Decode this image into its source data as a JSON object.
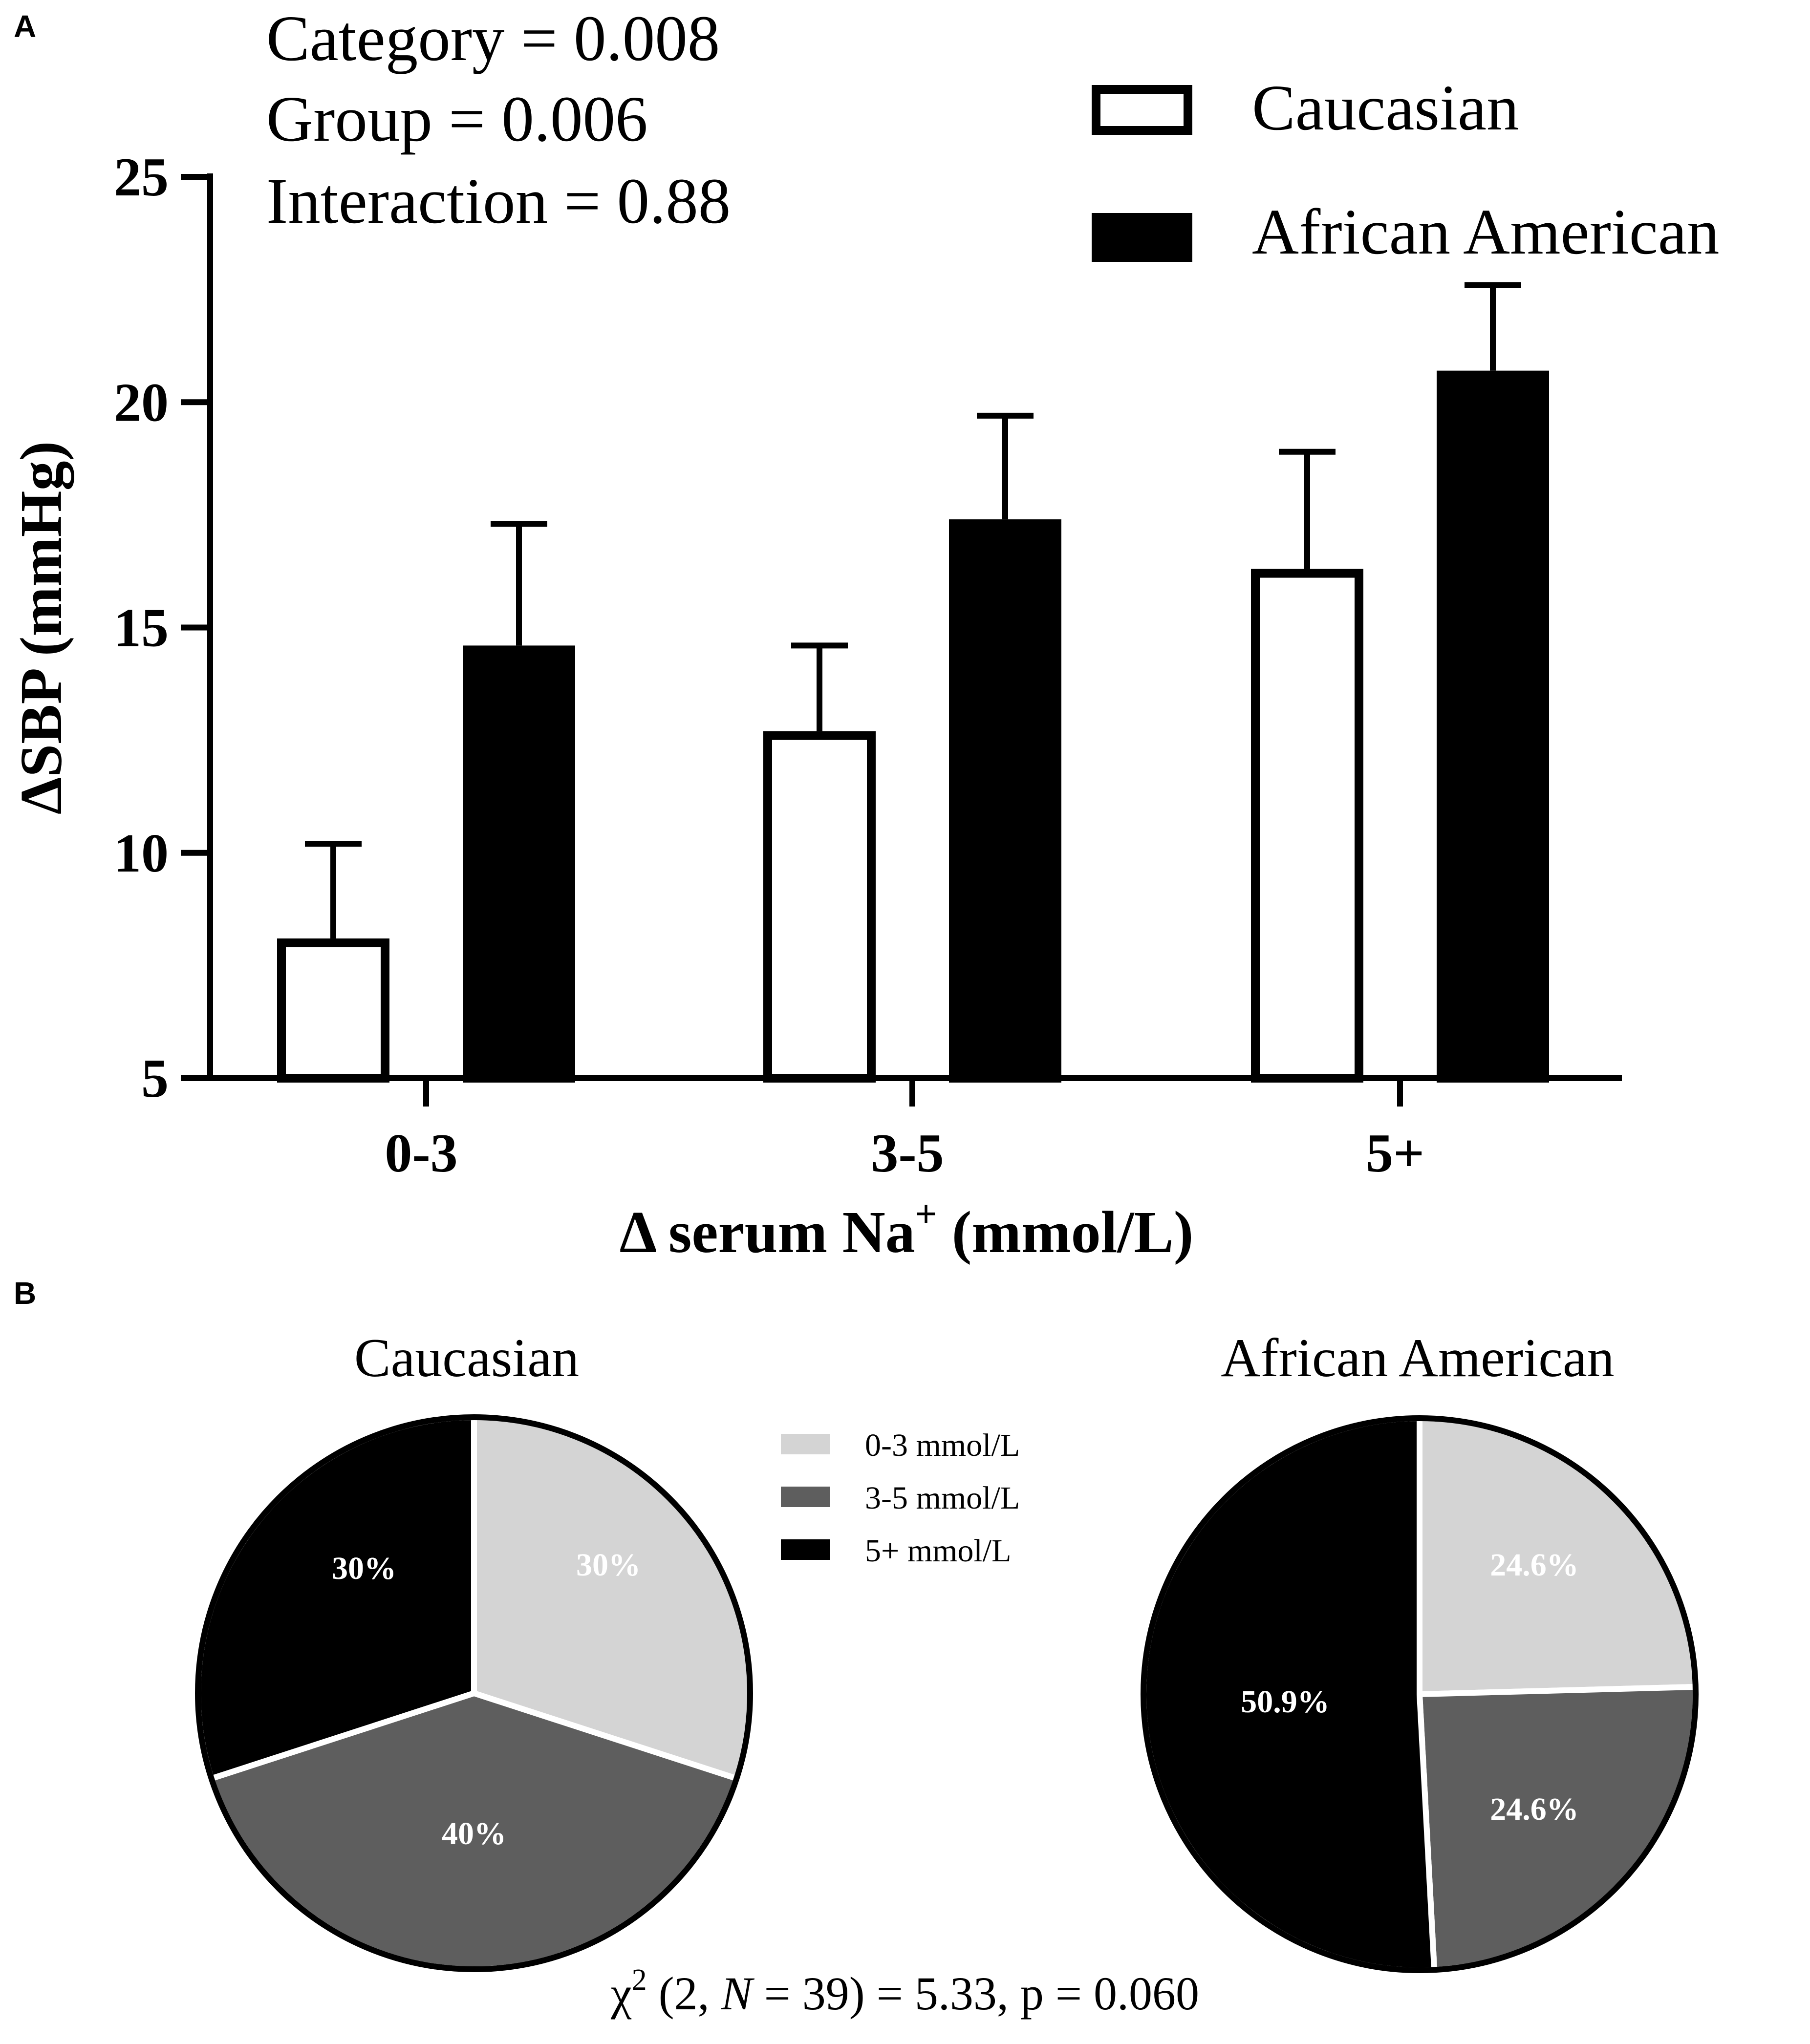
{
  "panel_a_label": "A",
  "panel_b_label": "B",
  "stats": {
    "category": "Category = 0.008",
    "group": "Group = 0.006",
    "interaction": "Interaction = 0.88"
  },
  "chart_data": [
    {
      "type": "bar",
      "title": "",
      "categories": [
        "0-3",
        "3-5",
        "5+"
      ],
      "series": [
        {
          "name": "Caucasian",
          "values": [
            8.1,
            12.7,
            16.3
          ],
          "errors": [
            2.1,
            1.9,
            2.6
          ],
          "color": "#ffffff",
          "edge": "#000000"
        },
        {
          "name": "African American",
          "values": [
            14.6,
            17.4,
            20.7
          ],
          "errors": [
            2.7,
            2.3,
            1.9
          ],
          "color": "#000000",
          "edge": "#000000"
        }
      ],
      "xlabel": "Δ serum Na",
      "xlabel_sup": "+",
      "xlabel_unit": "(mmol/L)",
      "ylabel": "ΔSBP (mmHg)",
      "ylim": [
        5,
        25
      ],
      "yticks": [
        "5",
        "10",
        "15",
        "20",
        "25"
      ],
      "legend_position": "top-right",
      "grid": false
    },
    {
      "type": "pie",
      "title": "Caucasian",
      "labels": [
        "0-3 mmol/L",
        "3-5 mmol/L",
        "5+ mmol/L"
      ],
      "values": [
        30,
        40,
        30
      ],
      "value_labels": [
        "30%",
        "40%",
        "30%"
      ],
      "colors": [
        "#d4d4d4",
        "#5e5e5e",
        "#000000"
      ]
    },
    {
      "type": "pie",
      "title": "African American",
      "labels": [
        "0-3 mmol/L",
        "3-5 mmol/L",
        "5+ mmol/L"
      ],
      "values": [
        24.6,
        24.6,
        50.9
      ],
      "value_labels": [
        "24.6%",
        "24.6%",
        "50.9%"
      ],
      "colors": [
        "#d4d4d4",
        "#5e5e5e",
        "#000000"
      ]
    }
  ],
  "chisq": {
    "symbol": "χ",
    "sup": "2",
    "open": " (2, ",
    "n_var": "N",
    "rest": " = 39) = 5.33, p = 0.060"
  }
}
